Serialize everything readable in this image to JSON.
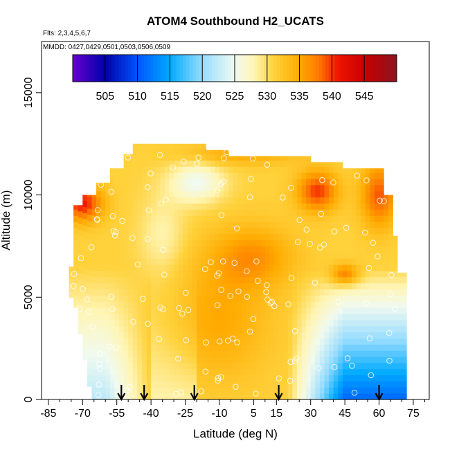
{
  "chart_data": {
    "type": "heatmap",
    "title": "ATOM4 Southbound H2_UCATS",
    "subtitle_flights": "Flts: 2,3,4,5,6,7",
    "subtitle_dates": "MMDD: 0427,0429,0501,0503,0506,0509",
    "xlabel": "Latitude (deg N)",
    "ylabel": "Altitude (m)",
    "xlim": [
      -88,
      82
    ],
    "ylim": [
      0,
      17500
    ],
    "x_ticks": [
      -85,
      -70,
      -55,
      -40,
      -25,
      -10,
      5,
      15,
      30,
      45,
      60,
      75
    ],
    "x_tick_labels": [
      "-85",
      "-70",
      "-55",
      "-40",
      "-25",
      "-10",
      "5",
      "15",
      "30",
      "45",
      "60",
      "75"
    ],
    "y_ticks": [
      0,
      5000,
      10000,
      15000
    ],
    "y_tick_labels": [
      "0",
      "5000",
      "10000",
      "15000"
    ],
    "colorbar": {
      "range": [
        500,
        550
      ],
      "tick_values": [
        505,
        510,
        515,
        520,
        525,
        530,
        535,
        540,
        545
      ],
      "tick_labels": [
        "505",
        "510",
        "515",
        "520",
        "525",
        "530",
        "535",
        "540",
        "545"
      ]
    },
    "legend_position": "top",
    "arrow_latitudes": [
      -53,
      -43,
      -21,
      16,
      60
    ]
  }
}
